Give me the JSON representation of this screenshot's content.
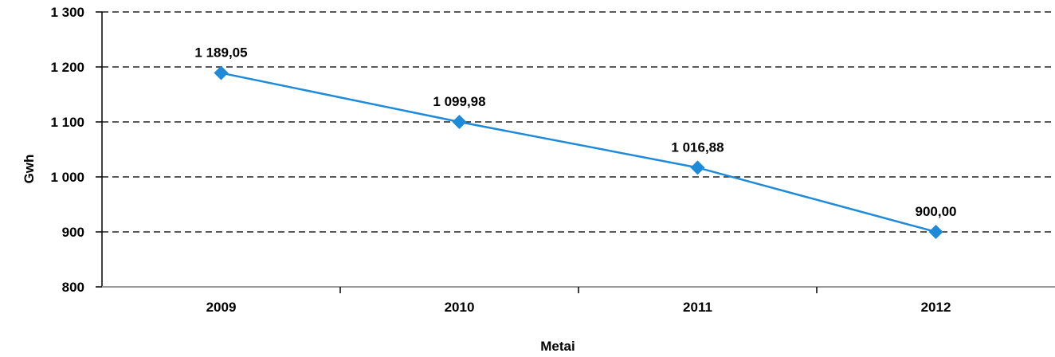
{
  "chart_data": {
    "type": "line",
    "categories": [
      "2009",
      "2010",
      "2011",
      "2012"
    ],
    "series": [
      {
        "values": [
          1189.05,
          1099.98,
          1016.88,
          900.0
        ],
        "labels": [
          "1 189,05",
          "1 099,98",
          "1 016,88",
          "900,00"
        ],
        "color": "#1f8ad8"
      }
    ],
    "xlabel": "Metai",
    "ylabel": "Gwh",
    "ylim": [
      800,
      1300
    ],
    "yticks": [
      800,
      900,
      1000,
      1100,
      1200,
      1300
    ],
    "ytick_labels": [
      "800",
      "900",
      "1 000",
      "1 100",
      "1 200",
      "1 300"
    ],
    "grid": "dashed horizontal",
    "marker": "diamond"
  }
}
